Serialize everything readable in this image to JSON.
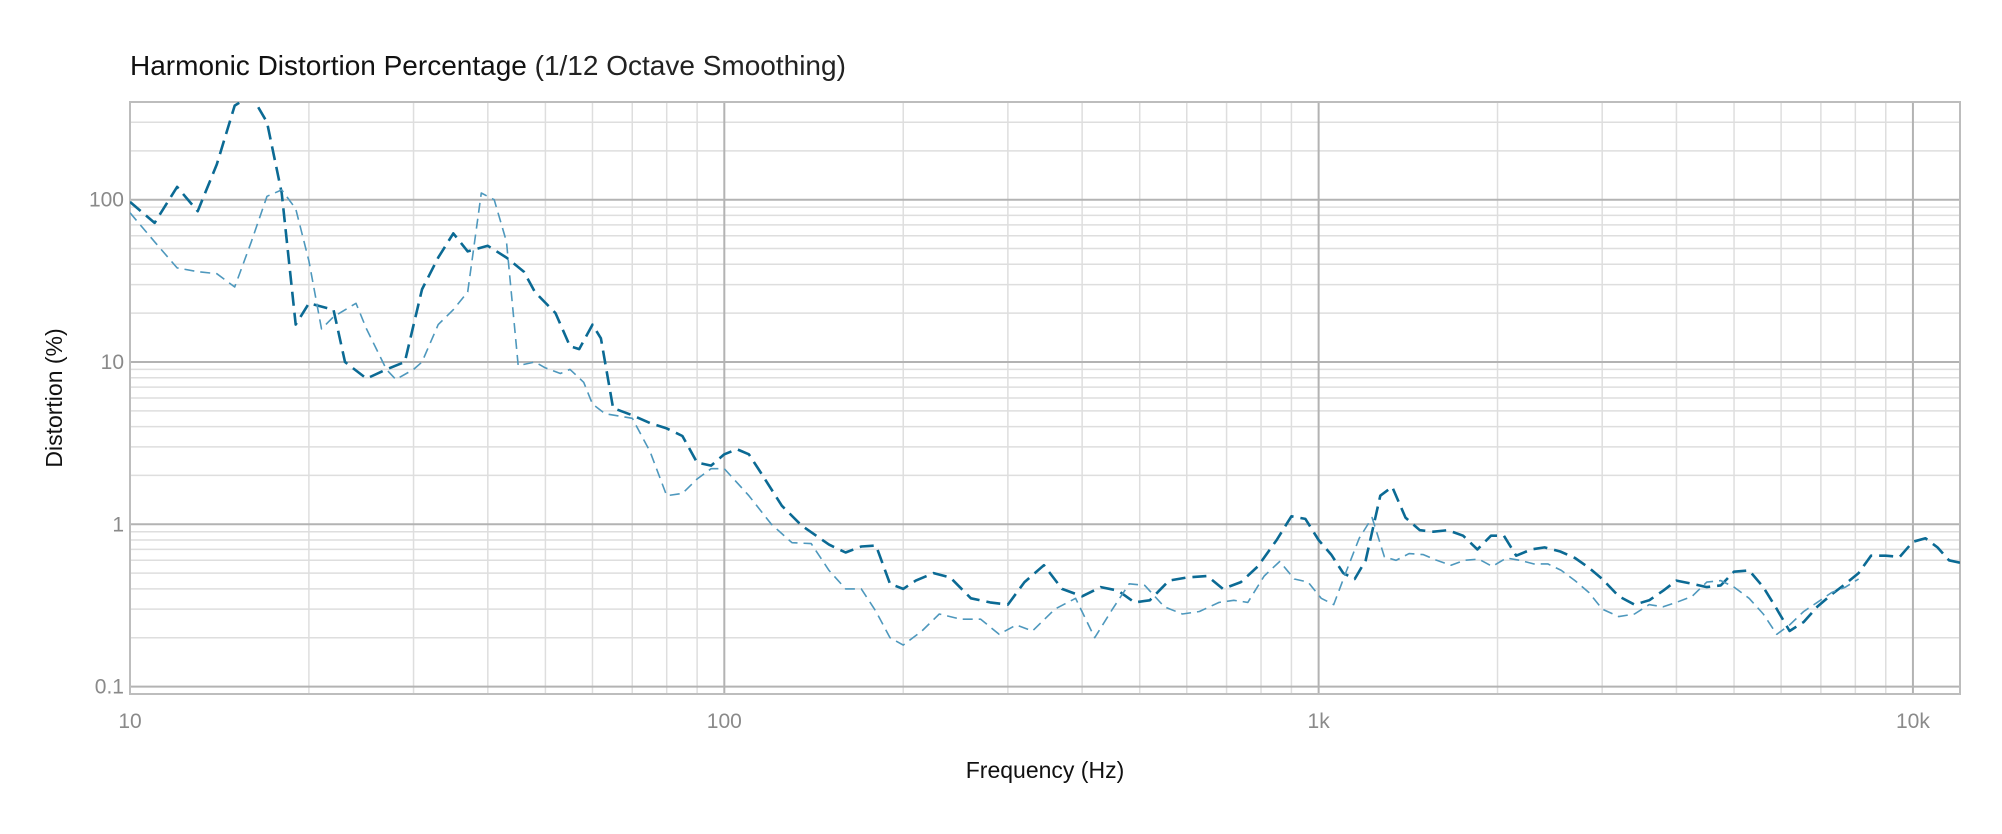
{
  "chart_data": {
    "type": "line",
    "title": "Harmonic Distortion Percentage",
    "subtitle": "(1/12 Octave Smoothing)",
    "xlabel": "Frequency (Hz)",
    "ylabel": "Distortion (%)",
    "x_scale": "log",
    "y_scale": "log",
    "xlim": [
      10,
      12000
    ],
    "ylim": [
      0.09,
      400
    ],
    "x_ticks": [
      {
        "value": 10,
        "label": "10"
      },
      {
        "value": 100,
        "label": "100"
      },
      {
        "value": 1000,
        "label": "1k"
      },
      {
        "value": 10000,
        "label": "10k"
      }
    ],
    "y_ticks": [
      {
        "value": 0.1,
        "label": "0.1"
      },
      {
        "value": 1,
        "label": "1"
      },
      {
        "value": 10,
        "label": "10"
      },
      {
        "value": 100,
        "label": "100"
      }
    ],
    "grid": true,
    "series": [
      {
        "color": "#0b6a94",
        "style": "dashed-thick",
        "points": [
          [
            10,
            97
          ],
          [
            11,
            72
          ],
          [
            12,
            120
          ],
          [
            13,
            85
          ],
          [
            14,
            165
          ],
          [
            15,
            380
          ],
          [
            16,
            440
          ],
          [
            17,
            300
          ],
          [
            18,
            110
          ],
          [
            19,
            17
          ],
          [
            20,
            23
          ],
          [
            22,
            21
          ],
          [
            23,
            10
          ],
          [
            25,
            7.9
          ],
          [
            27,
            9
          ],
          [
            29,
            10
          ],
          [
            31,
            28
          ],
          [
            33,
            44
          ],
          [
            35,
            62
          ],
          [
            37,
            48
          ],
          [
            40,
            52
          ],
          [
            43,
            44
          ],
          [
            46,
            36
          ],
          [
            48,
            27
          ],
          [
            52,
            20
          ],
          [
            55,
            12.5
          ],
          [
            57,
            12
          ],
          [
            60,
            17
          ],
          [
            62,
            14
          ],
          [
            65,
            5.2
          ],
          [
            70,
            4.7
          ],
          [
            75,
            4.2
          ],
          [
            80,
            3.9
          ],
          [
            85,
            3.5
          ],
          [
            90,
            2.4
          ],
          [
            95,
            2.3
          ],
          [
            100,
            2.7
          ],
          [
            105,
            2.9
          ],
          [
            110,
            2.7
          ],
          [
            115,
            2.1
          ],
          [
            125,
            1.3
          ],
          [
            135,
            0.98
          ],
          [
            150,
            0.75
          ],
          [
            160,
            0.67
          ],
          [
            170,
            0.73
          ],
          [
            180,
            0.74
          ],
          [
            190,
            0.43
          ],
          [
            200,
            0.4
          ],
          [
            210,
            0.45
          ],
          [
            225,
            0.5
          ],
          [
            240,
            0.47
          ],
          [
            260,
            0.35
          ],
          [
            280,
            0.33
          ],
          [
            300,
            0.32
          ],
          [
            320,
            0.44
          ],
          [
            345,
            0.56
          ],
          [
            370,
            0.4
          ],
          [
            400,
            0.36
          ],
          [
            430,
            0.41
          ],
          [
            460,
            0.39
          ],
          [
            490,
            0.33
          ],
          [
            520,
            0.34
          ],
          [
            560,
            0.45
          ],
          [
            600,
            0.47
          ],
          [
            650,
            0.48
          ],
          [
            690,
            0.4
          ],
          [
            740,
            0.44
          ],
          [
            790,
            0.55
          ],
          [
            850,
            0.8
          ],
          [
            900,
            1.12
          ],
          [
            950,
            1.08
          ],
          [
            1000,
            0.8
          ],
          [
            1050,
            0.65
          ],
          [
            1100,
            0.5
          ],
          [
            1150,
            0.46
          ],
          [
            1200,
            0.6
          ],
          [
            1270,
            1.5
          ],
          [
            1330,
            1.7
          ],
          [
            1400,
            1.1
          ],
          [
            1480,
            0.92
          ],
          [
            1560,
            0.9
          ],
          [
            1650,
            0.92
          ],
          [
            1750,
            0.85
          ],
          [
            1850,
            0.7
          ],
          [
            1950,
            0.85
          ],
          [
            2050,
            0.85
          ],
          [
            2150,
            0.64
          ],
          [
            2280,
            0.7
          ],
          [
            2400,
            0.72
          ],
          [
            2550,
            0.68
          ],
          [
            2700,
            0.62
          ],
          [
            2850,
            0.54
          ],
          [
            3000,
            0.46
          ],
          [
            3200,
            0.36
          ],
          [
            3400,
            0.32
          ],
          [
            3600,
            0.34
          ],
          [
            3800,
            0.39
          ],
          [
            4000,
            0.45
          ],
          [
            4250,
            0.43
          ],
          [
            4500,
            0.41
          ],
          [
            4750,
            0.42
          ],
          [
            5000,
            0.51
          ],
          [
            5300,
            0.52
          ],
          [
            5600,
            0.41
          ],
          [
            5900,
            0.3
          ],
          [
            6200,
            0.22
          ],
          [
            6550,
            0.25
          ],
          [
            6900,
            0.31
          ],
          [
            7300,
            0.37
          ],
          [
            7700,
            0.43
          ],
          [
            8100,
            0.5
          ],
          [
            8500,
            0.64
          ],
          [
            9000,
            0.64
          ],
          [
            9500,
            0.63
          ],
          [
            10000,
            0.78
          ],
          [
            10500,
            0.82
          ],
          [
            11000,
            0.72
          ],
          [
            11500,
            0.6
          ],
          [
            12000,
            0.58
          ]
        ]
      },
      {
        "color": "#4e98bd",
        "style": "dashed-thin",
        "points": [
          [
            10,
            83
          ],
          [
            11,
            55
          ],
          [
            12,
            38
          ],
          [
            13,
            36
          ],
          [
            14,
            35
          ],
          [
            15,
            29
          ],
          [
            16,
            55
          ],
          [
            17,
            105
          ],
          [
            18,
            115
          ],
          [
            19,
            88
          ],
          [
            20,
            42
          ],
          [
            21,
            16
          ],
          [
            22,
            19
          ],
          [
            24,
            23
          ],
          [
            25,
            16
          ],
          [
            27,
            9
          ],
          [
            28,
            7.8
          ],
          [
            30,
            9
          ],
          [
            31,
            10
          ],
          [
            33,
            17
          ],
          [
            35,
            21
          ],
          [
            37,
            27
          ],
          [
            39,
            110
          ],
          [
            41,
            100
          ],
          [
            43,
            55
          ],
          [
            45,
            9.5
          ],
          [
            48,
            10
          ],
          [
            50,
            9.2
          ],
          [
            53,
            8.5
          ],
          [
            55,
            9
          ],
          [
            58,
            7.5
          ],
          [
            60,
            5.5
          ],
          [
            63,
            4.8
          ],
          [
            70,
            4.5
          ],
          [
            75,
            2.8
          ],
          [
            80,
            1.5
          ],
          [
            85,
            1.55
          ],
          [
            90,
            1.9
          ],
          [
            95,
            2.2
          ],
          [
            100,
            2.2
          ],
          [
            110,
            1.5
          ],
          [
            120,
            1.0
          ],
          [
            130,
            0.77
          ],
          [
            140,
            0.76
          ],
          [
            150,
            0.52
          ],
          [
            160,
            0.4
          ],
          [
            170,
            0.4
          ],
          [
            180,
            0.29
          ],
          [
            190,
            0.2
          ],
          [
            200,
            0.18
          ],
          [
            215,
            0.22
          ],
          [
            230,
            0.28
          ],
          [
            250,
            0.26
          ],
          [
            270,
            0.26
          ],
          [
            290,
            0.21
          ],
          [
            310,
            0.24
          ],
          [
            330,
            0.22
          ],
          [
            360,
            0.3
          ],
          [
            390,
            0.35
          ],
          [
            420,
            0.2
          ],
          [
            450,
            0.3
          ],
          [
            480,
            0.43
          ],
          [
            510,
            0.42
          ],
          [
            550,
            0.31
          ],
          [
            590,
            0.28
          ],
          [
            630,
            0.29
          ],
          [
            680,
            0.33
          ],
          [
            720,
            0.34
          ],
          [
            760,
            0.33
          ],
          [
            810,
            0.48
          ],
          [
            860,
            0.59
          ],
          [
            910,
            0.46
          ],
          [
            960,
            0.44
          ],
          [
            1010,
            0.35
          ],
          [
            1060,
            0.32
          ],
          [
            1110,
            0.5
          ],
          [
            1170,
            0.82
          ],
          [
            1230,
            1.1
          ],
          [
            1290,
            0.63
          ],
          [
            1350,
            0.6
          ],
          [
            1420,
            0.66
          ],
          [
            1500,
            0.65
          ],
          [
            1580,
            0.6
          ],
          [
            1670,
            0.56
          ],
          [
            1760,
            0.6
          ],
          [
            1860,
            0.61
          ],
          [
            1960,
            0.55
          ],
          [
            2070,
            0.62
          ],
          [
            2180,
            0.6
          ],
          [
            2300,
            0.57
          ],
          [
            2430,
            0.57
          ],
          [
            2560,
            0.52
          ],
          [
            2700,
            0.45
          ],
          [
            2850,
            0.38
          ],
          [
            3000,
            0.3
          ],
          [
            3200,
            0.27
          ],
          [
            3400,
            0.28
          ],
          [
            3600,
            0.32
          ],
          [
            3800,
            0.31
          ],
          [
            4000,
            0.33
          ],
          [
            4250,
            0.36
          ],
          [
            4500,
            0.44
          ],
          [
            4750,
            0.45
          ],
          [
            5000,
            0.41
          ],
          [
            5300,
            0.35
          ],
          [
            5600,
            0.28
          ],
          [
            5900,
            0.21
          ],
          [
            6200,
            0.24
          ],
          [
            6550,
            0.29
          ],
          [
            6900,
            0.33
          ],
          [
            7300,
            0.38
          ],
          [
            7700,
            0.41
          ],
          [
            8100,
            0.46
          ]
        ]
      }
    ]
  }
}
